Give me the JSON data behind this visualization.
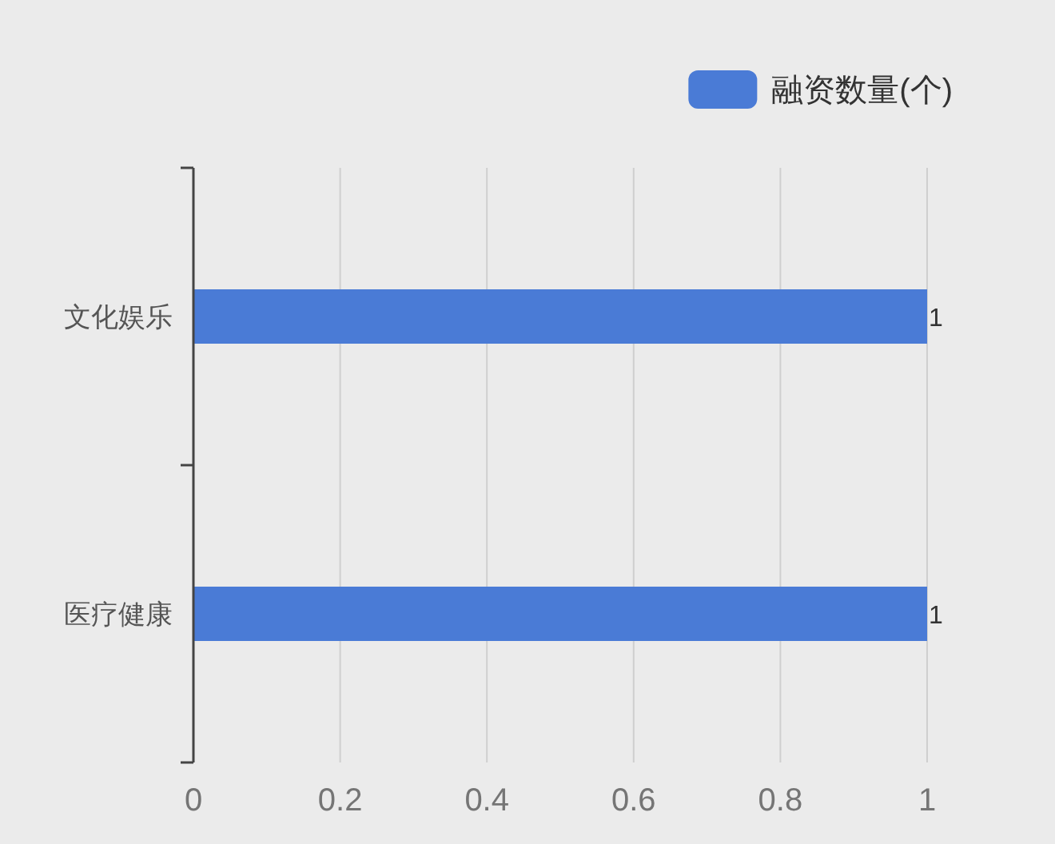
{
  "chart_data": {
    "type": "bar",
    "orientation": "horizontal",
    "categories": [
      "文化娱乐",
      "医疗健康"
    ],
    "series": [
      {
        "name": "融资数量(个)",
        "color": "#4a7bd6",
        "values": [
          1,
          1
        ]
      }
    ],
    "xlim": [
      0,
      1
    ],
    "xticks": [
      0,
      0.2,
      0.4,
      0.6,
      0.8,
      1
    ],
    "grid": "x",
    "legend": "top right",
    "data_labels": true
  }
}
